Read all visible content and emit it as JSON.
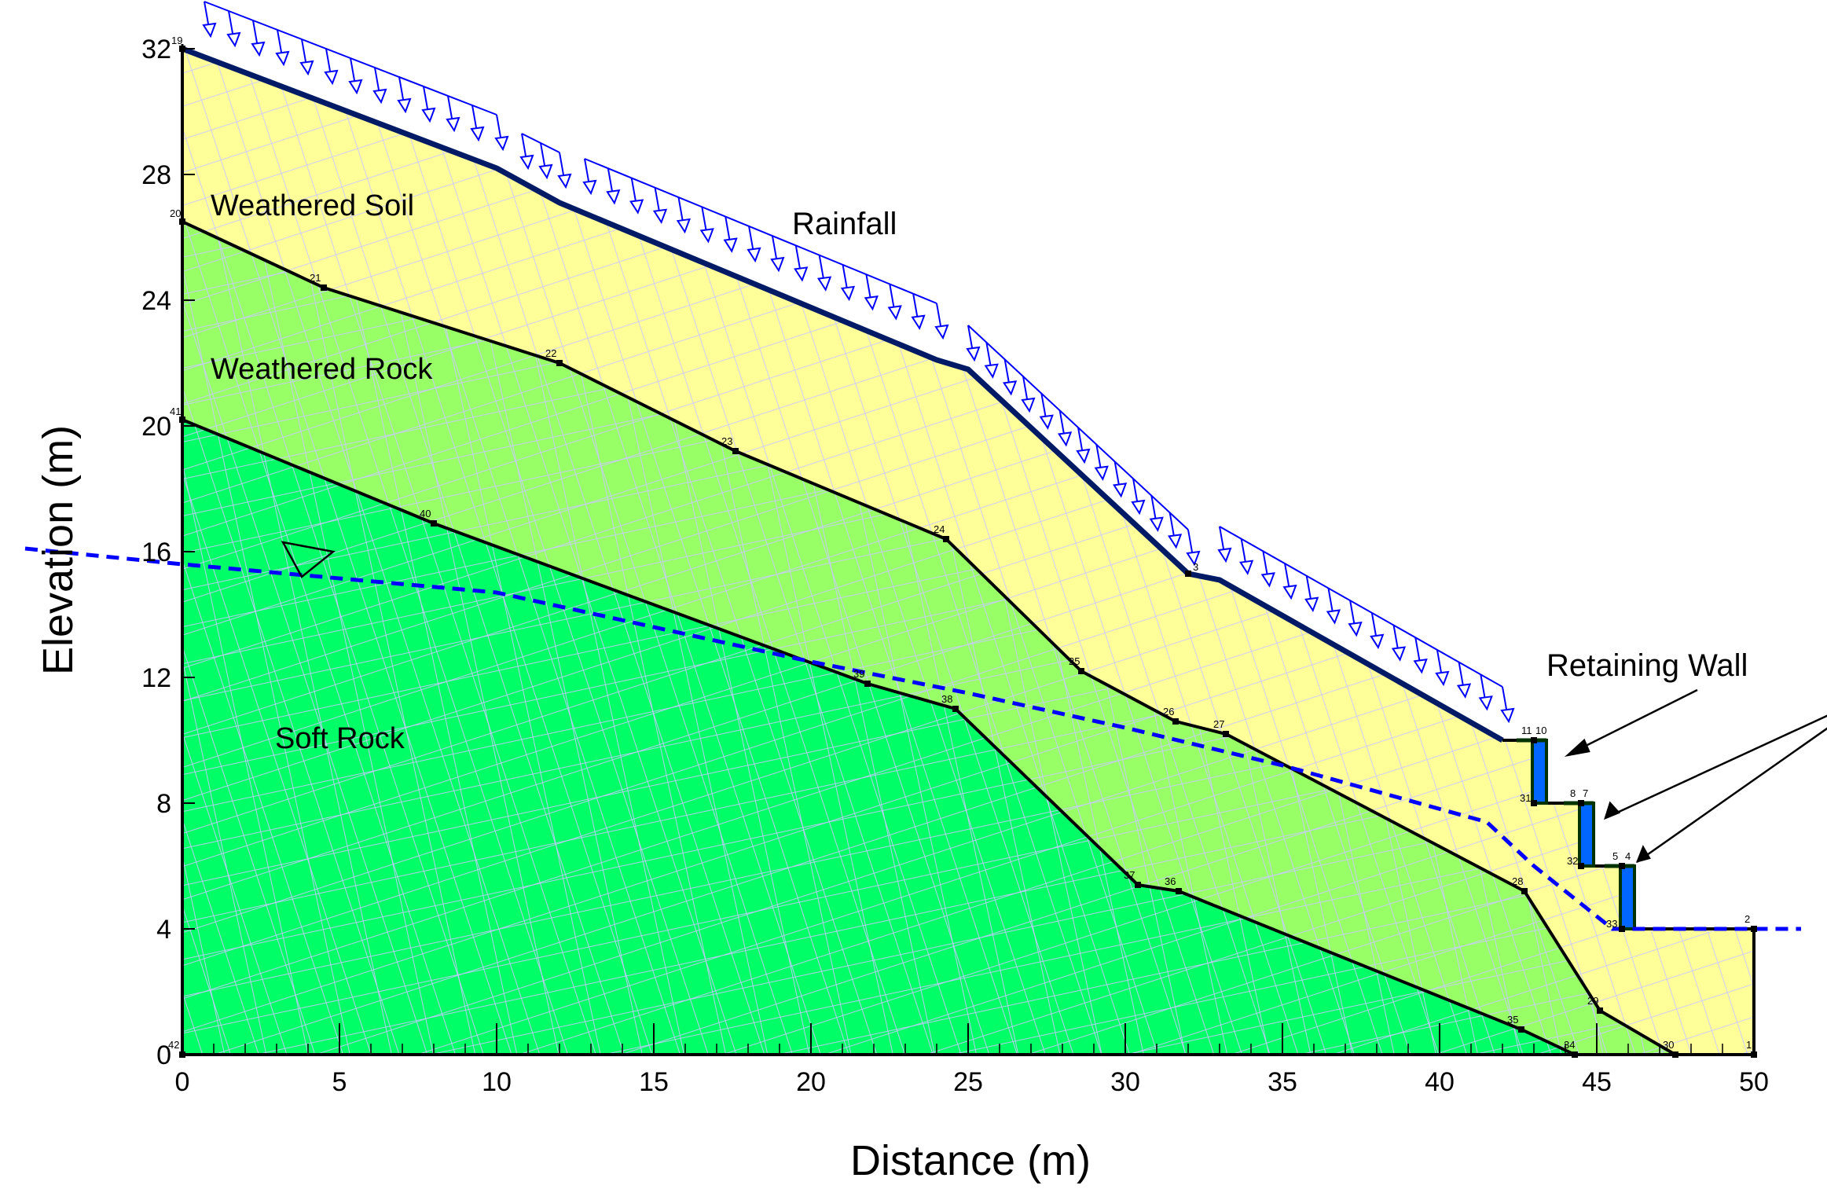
{
  "axes": {
    "x_title": "Distance (m)",
    "y_title": "Elevation (m)",
    "x_ticks": [
      "0",
      "5",
      "10",
      "15",
      "20",
      "25",
      "30",
      "35",
      "40",
      "45",
      "50"
    ],
    "y_ticks": [
      "0",
      "4",
      "8",
      "12",
      "16",
      "20",
      "24",
      "28",
      "32"
    ],
    "x_range": [
      0,
      50
    ],
    "y_range": [
      0,
      32
    ]
  },
  "labels": {
    "weathered_soil": "Weathered Soil",
    "weathered_rock": "Weathered Rock",
    "soft_rock": "Soft Rock",
    "rainfall": "Rainfall",
    "retaining_wall": "Retaining Wall"
  },
  "layers": {
    "weathered_soil": {
      "color": "#ffff99",
      "surface": [
        [
          0,
          32
        ],
        [
          10,
          28.2
        ],
        [
          12,
          27.1
        ],
        [
          24,
          22.1
        ],
        [
          25,
          21.8
        ],
        [
          32,
          15.3
        ],
        [
          33,
          15.1
        ],
        [
          42,
          10
        ],
        [
          43,
          10
        ],
        [
          43,
          8
        ],
        [
          44.5,
          8
        ],
        [
          44.5,
          6
        ],
        [
          45.8,
          6
        ],
        [
          45.8,
          4
        ],
        [
          50,
          4
        ]
      ]
    },
    "weathered_rock": {
      "color": "#99ff66",
      "top": [
        [
          0,
          26.5
        ],
        [
          4.5,
          24.4
        ],
        [
          12,
          22
        ],
        [
          17.6,
          19.2
        ],
        [
          24.3,
          16.4
        ],
        [
          28.6,
          12.2
        ],
        [
          31.6,
          10.6
        ],
        [
          33.2,
          10.2
        ],
        [
          42.7,
          5.2
        ],
        [
          45.1,
          1.4
        ],
        [
          47.5,
          0
        ]
      ]
    },
    "soft_rock": {
      "color": "#00ff66",
      "top": [
        [
          0,
          20.2
        ],
        [
          8,
          16.9
        ],
        [
          21.8,
          11.8
        ],
        [
          24.6,
          11
        ],
        [
          30.4,
          5.4
        ],
        [
          31.7,
          5.2
        ],
        [
          42.6,
          0.8
        ],
        [
          44.3,
          0
        ]
      ]
    }
  },
  "water_table": {
    "color": "#0000ff",
    "points": [
      [
        -5,
        16.1
      ],
      [
        0,
        15.6
      ],
      [
        10,
        14.7
      ],
      [
        20,
        12.5
      ],
      [
        25,
        11.5
      ],
      [
        30,
        10.4
      ],
      [
        35,
        9.2
      ],
      [
        41.5,
        7.4
      ],
      [
        43,
        6
      ],
      [
        45.5,
        4
      ],
      [
        51.5,
        4
      ]
    ]
  },
  "node_numbers": {
    "n1": "1",
    "n2": "2",
    "n3": "3",
    "n4": "4",
    "n5": "5",
    "n7": "7",
    "n8": "8",
    "n10": "10",
    "n11": "11",
    "n19": "19",
    "n20": "20",
    "n21": "21",
    "n22": "22",
    "n23": "23",
    "n24": "24",
    "n25": "25",
    "n26": "26",
    "n27": "27",
    "n28": "28",
    "n29": "29",
    "n30": "30",
    "n31": "31",
    "n32": "32",
    "n33": "33",
    "n34": "34",
    "n35": "35",
    "n36": "36",
    "n37": "37",
    "n38": "38",
    "n39": "39",
    "n40": "40",
    "n41": "41",
    "n42": "42"
  },
  "colors": {
    "mesh": "#c8c8ff",
    "rain_arrow": "#0000ff",
    "surface_line": "#001a66",
    "wall_fill": "#0066ff",
    "wall_outline": "#003300",
    "boundary": "#000000"
  }
}
